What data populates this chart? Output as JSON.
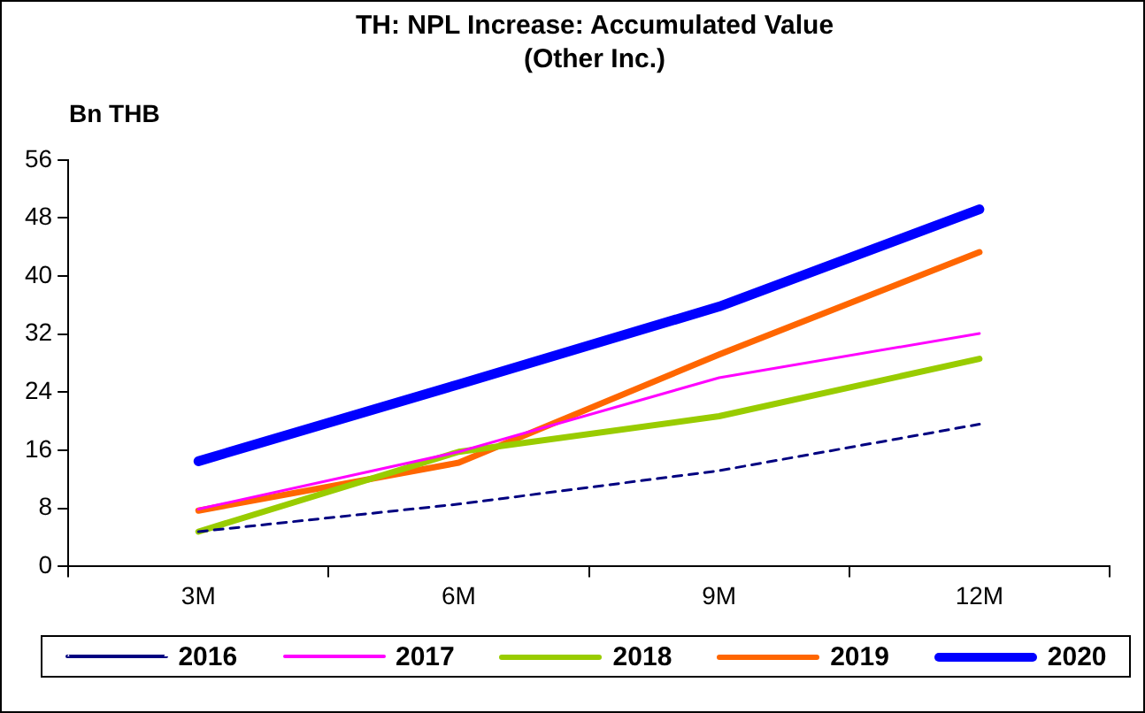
{
  "chart_data": {
    "type": "line",
    "title": "TH: NPL Increase: Accumulated Value (Other Inc.)",
    "ylabel": "Bn THB",
    "categories": [
      "3M",
      "6M",
      "9M",
      "12M"
    ],
    "series": [
      {
        "name": "2016",
        "color": "#000080",
        "line_style": "dashed",
        "values": [
          4.8,
          8.6,
          13.2,
          19.6
        ]
      },
      {
        "name": "2017",
        "color": "#ff00ff",
        "values": [
          7.9,
          15.8,
          26,
          32.1
        ]
      },
      {
        "name": "2018",
        "color": "#99cc00",
        "values": [
          4.8,
          15.8,
          20.7,
          28.6
        ]
      },
      {
        "name": "2019",
        "color": "#ff6600",
        "values": [
          7.7,
          14.3,
          29.2,
          43.3
        ]
      },
      {
        "name": "2020",
        "color": "#0000ff",
        "values": [
          14.5,
          25.1,
          35.8,
          49.2
        ]
      }
    ],
    "ylim": [
      0,
      56
    ],
    "yticks": [
      0,
      8,
      16,
      24,
      32,
      40,
      48,
      56
    ],
    "grid": false,
    "legend": "bottom",
    "marker": "none",
    "line_style": "solid"
  }
}
